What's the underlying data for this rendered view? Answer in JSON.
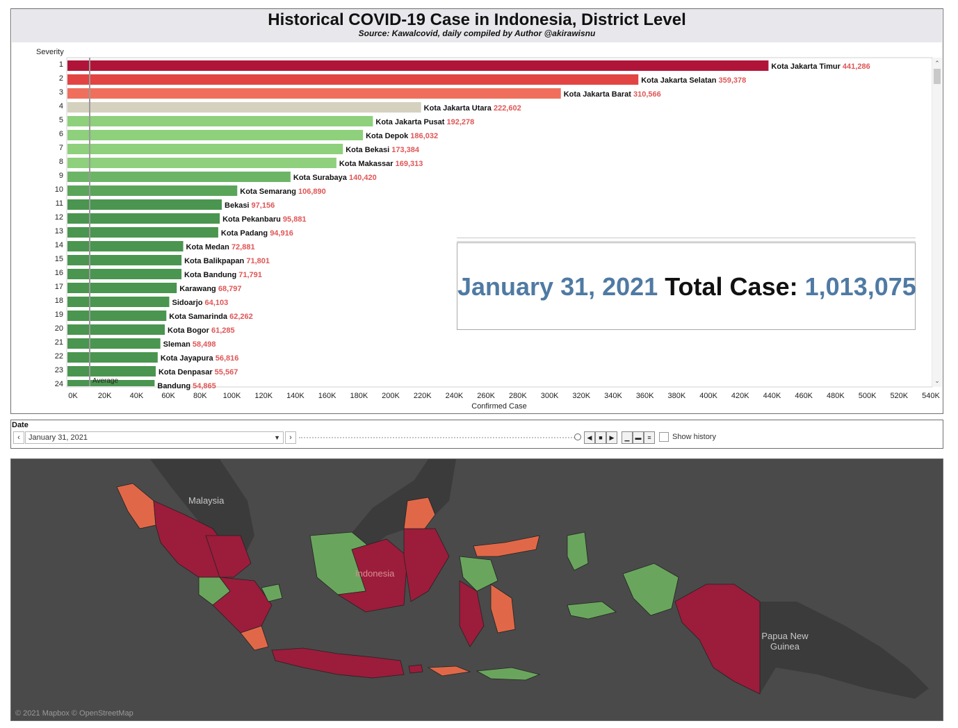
{
  "header": {
    "title": "Historical COVID-19 Case in Indonesia, District Level",
    "subtitle": "Source: Kawalcovid, daily compiled by Author @akirawisnu"
  },
  "colors": {
    "rank1": "#b01539",
    "rank2": "#e24444",
    "rank3": "#f06f5c",
    "rank4": "#d5d1bf",
    "light_green": "#8ed07c",
    "mid_green": "#6db566",
    "dark_green": "#4a954f",
    "value_text": "#e05555",
    "accent_blue": "#4f7aa3",
    "map_background": "#4a4a4a",
    "map_red": "#9c1c3b",
    "map_orange": "#e06848",
    "map_green": "#6aa55d"
  },
  "chart_data": {
    "type": "bar",
    "orientation": "horizontal",
    "ylabel": "Severity",
    "xlabel": "Confirmed Case",
    "xlim": [
      0,
      540000
    ],
    "x_ticks": [
      "0K",
      "20K",
      "40K",
      "60K",
      "80K",
      "100K",
      "120K",
      "140K",
      "160K",
      "180K",
      "200K",
      "220K",
      "240K",
      "260K",
      "280K",
      "300K",
      "320K",
      "340K",
      "360K",
      "380K",
      "400K",
      "420K",
      "440K",
      "460K",
      "480K",
      "500K",
      "520K",
      "540K"
    ],
    "reference_line": {
      "label": "Average",
      "value": 14000
    },
    "bars": [
      {
        "rank": "1",
        "name": "Kota Jakarta Timur",
        "value": 441286,
        "value_label": "441,286",
        "color": "#b01539"
      },
      {
        "rank": "2",
        "name": "Kota Jakarta Selatan",
        "value": 359378,
        "value_label": "359,378",
        "color": "#e24444"
      },
      {
        "rank": "3",
        "name": "Kota Jakarta Barat",
        "value": 310566,
        "value_label": "310,566",
        "color": "#f06f5c"
      },
      {
        "rank": "4",
        "name": "Kota Jakarta Utara",
        "value": 222602,
        "value_label": "222,602",
        "color": "#d5d1bf"
      },
      {
        "rank": "5",
        "name": "Kota Jakarta Pusat",
        "value": 192278,
        "value_label": "192,278",
        "color": "#8ed07c"
      },
      {
        "rank": "6",
        "name": "Kota Depok",
        "value": 186032,
        "value_label": "186,032",
        "color": "#8ed07c"
      },
      {
        "rank": "7",
        "name": "Kota Bekasi",
        "value": 173384,
        "value_label": "173,384",
        "color": "#8ed07c"
      },
      {
        "rank": "8",
        "name": "Kota Makassar",
        "value": 169313,
        "value_label": "169,313",
        "color": "#8ed07c"
      },
      {
        "rank": "9",
        "name": "Kota Surabaya",
        "value": 140420,
        "value_label": "140,420",
        "color": "#6db566"
      },
      {
        "rank": "10",
        "name": "Kota Semarang",
        "value": 106890,
        "value_label": "106,890",
        "color": "#5aa55a"
      },
      {
        "rank": "11",
        "name": "Bekasi",
        "value": 97156,
        "value_label": "97,156",
        "color": "#4a954f"
      },
      {
        "rank": "12",
        "name": "Kota Pekanbaru",
        "value": 95881,
        "value_label": "95,881",
        "color": "#4a954f"
      },
      {
        "rank": "13",
        "name": "Kota Padang",
        "value": 94916,
        "value_label": "94,916",
        "color": "#4a954f"
      },
      {
        "rank": "14",
        "name": "Kota Medan",
        "value": 72881,
        "value_label": "72,881",
        "color": "#4a954f"
      },
      {
        "rank": "15",
        "name": "Kota Balikpapan",
        "value": 71801,
        "value_label": "71,801",
        "color": "#4a954f"
      },
      {
        "rank": "16",
        "name": "Kota Bandung",
        "value": 71791,
        "value_label": "71,791",
        "color": "#4a954f"
      },
      {
        "rank": "17",
        "name": "Karawang",
        "value": 68797,
        "value_label": "68,797",
        "color": "#4a954f"
      },
      {
        "rank": "18",
        "name": "Sidoarjo",
        "value": 64103,
        "value_label": "64,103",
        "color": "#4a954f"
      },
      {
        "rank": "19",
        "name": "Kota Samarinda",
        "value": 62262,
        "value_label": "62,262",
        "color": "#4a954f"
      },
      {
        "rank": "20",
        "name": "Kota Bogor",
        "value": 61285,
        "value_label": "61,285",
        "color": "#4a954f"
      },
      {
        "rank": "21",
        "name": "Sleman",
        "value": 58498,
        "value_label": "58,498",
        "color": "#4a954f"
      },
      {
        "rank": "22",
        "name": "Kota Jayapura",
        "value": 56816,
        "value_label": "56,816",
        "color": "#4a954f"
      },
      {
        "rank": "23",
        "name": "Kota Denpasar",
        "value": 55567,
        "value_label": "55,567",
        "color": "#4a954f"
      },
      {
        "rank": "24",
        "name": "Bandung",
        "value": 54865,
        "value_label": "54,865",
        "color": "#4a954f"
      }
    ]
  },
  "total_card": {
    "date": "January 31, 2021",
    "label": "Total Case:",
    "value": "1,013,075"
  },
  "date_filter": {
    "label": "Date",
    "selected": "January 31, 2021",
    "slider_position": 1.0,
    "show_history_label": "Show history",
    "show_history_checked": false
  },
  "map": {
    "labels": {
      "malaysia": "Malaysia",
      "indonesia": "Indonesia",
      "png": "Papua New Guinea"
    },
    "credit": "© 2021 Mapbox © OpenStreetMap"
  }
}
